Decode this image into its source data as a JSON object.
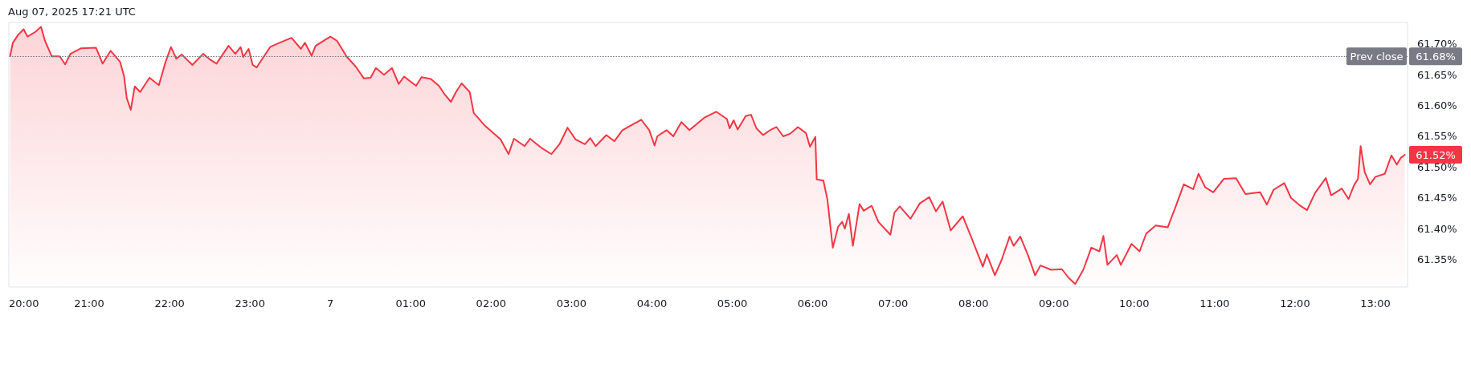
{
  "chart_data": {
    "type": "area",
    "annotations": [
      "Aug 07, 2025 17:21 UTC",
      "61.68%"
    ],
    "x": [
      "2025-08-06T20:01",
      "2025-08-06T20:03",
      "2025-08-06T20:07",
      "2025-08-06T20:11",
      "2025-08-06T20:14",
      "2025-08-06T20:20",
      "2025-08-06T20:24",
      "2025-08-06T20:27",
      "2025-08-06T20:32",
      "2025-08-06T20:38",
      "2025-08-06T20:42",
      "2025-08-06T20:46",
      "2025-08-06T20:54",
      "2025-08-06T21:05",
      "2025-08-06T21:10",
      "2025-08-06T21:16",
      "2025-08-06T21:23",
      "2025-08-06T21:26",
      "2025-08-06T21:28",
      "2025-08-06T21:31",
      "2025-08-06T21:34",
      "2025-08-06T21:38",
      "2025-08-06T21:45",
      "2025-08-06T21:52",
      "2025-08-06T21:57",
      "2025-08-06T22:01",
      "2025-08-06T22:05",
      "2025-08-06T22:09",
      "2025-08-06T22:17",
      "2025-08-06T22:25",
      "2025-08-06T22:30",
      "2025-08-06T22:35",
      "2025-08-06T22:44",
      "2025-08-06T22:49",
      "2025-08-06T22:53",
      "2025-08-06T22:55",
      "2025-08-06T22:59",
      "2025-08-06T23:02",
      "2025-08-06T23:05",
      "2025-08-06T23:15",
      "2025-08-06T23:22",
      "2025-08-06T23:31",
      "2025-08-06T23:38",
      "2025-08-06T23:41",
      "2025-08-06T23:46",
      "2025-08-06T23:49",
      "2025-08-07T00:00",
      "2025-08-07T00:05",
      "2025-08-07T00:12",
      "2025-08-07T00:19",
      "2025-08-07T00:25",
      "2025-08-07T00:30",
      "2025-08-07T00:34",
      "2025-08-07T00:40",
      "2025-08-07T00:46",
      "2025-08-07T00:51",
      "2025-08-07T00:55",
      "2025-08-07T01:04",
      "2025-08-07T01:08",
      "2025-08-07T01:15",
      "2025-08-07T01:21",
      "2025-08-07T01:25",
      "2025-08-07T01:30",
      "2025-08-07T01:34",
      "2025-08-07T01:38",
      "2025-08-07T01:44",
      "2025-08-07T01:47",
      "2025-08-07T01:55",
      "2025-08-07T02:07",
      "2025-08-07T02:13",
      "2025-08-07T02:17",
      "2025-08-07T02:25",
      "2025-08-07T02:29",
      "2025-08-07T02:37",
      "2025-08-07T02:45",
      "2025-08-07T02:51",
      "2025-08-07T02:57",
      "2025-08-07T03:03",
      "2025-08-07T03:10",
      "2025-08-07T03:14",
      "2025-08-07T03:18",
      "2025-08-07T03:26",
      "2025-08-07T03:32",
      "2025-08-07T03:38",
      "2025-08-07T03:52",
      "2025-08-07T03:58",
      "2025-08-07T04:02",
      "2025-08-07T04:04",
      "2025-08-07T04:11",
      "2025-08-07T04:16",
      "2025-08-07T04:22",
      "2025-08-07T04:28",
      "2025-08-07T04:39",
      "2025-08-07T04:48",
      "2025-08-07T04:56",
      "2025-08-07T04:58",
      "2025-08-07T05:01",
      "2025-08-07T05:04",
      "2025-08-07T05:10",
      "2025-08-07T05:14",
      "2025-08-07T05:18",
      "2025-08-07T05:23",
      "2025-08-07T05:29",
      "2025-08-07T05:33",
      "2025-08-07T05:38",
      "2025-08-07T05:43",
      "2025-08-07T05:49",
      "2025-08-07T05:55",
      "2025-08-07T05:58",
      "2025-08-07T06:02",
      "2025-08-07T06:03",
      "2025-08-07T06:08",
      "2025-08-07T06:11",
      "2025-08-07T06:15",
      "2025-08-07T06:19",
      "2025-08-07T06:22",
      "2025-08-07T06:24",
      "2025-08-07T06:27",
      "2025-08-07T06:30",
      "2025-08-07T06:35",
      "2025-08-07T06:38",
      "2025-08-07T06:44",
      "2025-08-07T06:49",
      "2025-08-07T06:58",
      "2025-08-07T07:01",
      "2025-08-07T07:05",
      "2025-08-07T07:13",
      "2025-08-07T07:20",
      "2025-08-07T07:27",
      "2025-08-07T07:32",
      "2025-08-07T07:37",
      "2025-08-07T07:43",
      "2025-08-07T07:52",
      "2025-08-07T07:58",
      "2025-08-07T08:07",
      "2025-08-07T08:10",
      "2025-08-07T08:16",
      "2025-08-07T08:21",
      "2025-08-07T08:27",
      "2025-08-07T08:30",
      "2025-08-07T08:35",
      "2025-08-07T08:41",
      "2025-08-07T08:46",
      "2025-08-07T08:50",
      "2025-08-07T08:58",
      "2025-08-07T09:06",
      "2025-08-07T09:11",
      "2025-08-07T09:16",
      "2025-08-07T09:22",
      "2025-08-07T09:28",
      "2025-08-07T09:34",
      "2025-08-07T09:37",
      "2025-08-07T09:40",
      "2025-08-07T09:47",
      "2025-08-07T09:50",
      "2025-08-07T09:58",
      "2025-08-07T10:04",
      "2025-08-07T10:09",
      "2025-08-07T10:16",
      "2025-08-07T10:25",
      "2025-08-07T10:28",
      "2025-08-07T10:31",
      "2025-08-07T10:37",
      "2025-08-07T10:44",
      "2025-08-07T10:48",
      "2025-08-07T10:53",
      "2025-08-07T10:59",
      "2025-08-07T11:07",
      "2025-08-07T11:16",
      "2025-08-07T11:23",
      "2025-08-07T11:34",
      "2025-08-07T11:39",
      "2025-08-07T11:44",
      "2025-08-07T11:52",
      "2025-08-07T11:57",
      "2025-08-07T12:04",
      "2025-08-07T12:09",
      "2025-08-07T12:15",
      "2025-08-07T12:23",
      "2025-08-07T12:27",
      "2025-08-07T12:35",
      "2025-08-07T12:40",
      "2025-08-07T12:44",
      "2025-08-07T12:47",
      "2025-08-07T12:49",
      "2025-08-07T12:52",
      "2025-08-07T12:56",
      "2025-08-07T13:00",
      "2025-08-07T13:07",
      "2025-08-07T13:12",
      "2025-08-07T13:16",
      "2025-08-07T13:19",
      "2025-08-07T13:22"
    ],
    "series": [
      {
        "color": "#f23645",
        "values": [
          61.681,
          61.702,
          61.715,
          61.724,
          61.712,
          61.72,
          61.728,
          61.705,
          61.68,
          61.68,
          61.667,
          61.684,
          61.693,
          61.694,
          61.668,
          61.689,
          61.671,
          61.648,
          61.612,
          61.593,
          61.631,
          61.622,
          61.645,
          61.633,
          61.671,
          61.695,
          61.676,
          61.683,
          61.666,
          61.684,
          61.675,
          61.668,
          61.697,
          61.684,
          61.695,
          61.679,
          61.692,
          61.666,
          61.662,
          61.695,
          61.702,
          61.71,
          61.692,
          61.702,
          61.681,
          61.697,
          61.712,
          61.705,
          61.68,
          61.663,
          61.644,
          61.645,
          61.661,
          61.65,
          61.661,
          61.635,
          61.647,
          61.632,
          61.646,
          61.643,
          61.632,
          61.619,
          61.606,
          61.623,
          61.636,
          61.622,
          61.588,
          61.568,
          61.545,
          61.521,
          61.546,
          61.534,
          61.546,
          61.532,
          61.521,
          61.537,
          61.564,
          61.545,
          61.537,
          61.547,
          61.534,
          61.552,
          61.542,
          61.56,
          61.577,
          61.56,
          61.535,
          61.55,
          61.56,
          61.55,
          61.573,
          61.56,
          61.58,
          61.59,
          61.578,
          61.563,
          61.576,
          61.561,
          61.583,
          61.585,
          61.563,
          61.552,
          61.561,
          61.565,
          61.55,
          61.554,
          61.565,
          61.555,
          61.533,
          61.549,
          61.48,
          61.478,
          61.447,
          61.369,
          61.403,
          61.411,
          61.4,
          61.424,
          61.372,
          61.44,
          61.429,
          61.437,
          61.411,
          61.39,
          61.426,
          61.436,
          61.416,
          61.441,
          61.451,
          61.428,
          61.444,
          61.397,
          61.42,
          61.388,
          61.338,
          61.358,
          61.324,
          61.349,
          61.387,
          61.372,
          61.387,
          61.355,
          61.324,
          61.34,
          61.333,
          61.334,
          61.32,
          61.31,
          61.333,
          61.369,
          61.363,
          61.388,
          61.341,
          61.357,
          61.341,
          61.375,
          61.363,
          61.392,
          61.405,
          61.402,
          61.419,
          61.436,
          61.472,
          61.464,
          61.489,
          61.467,
          61.459,
          61.481,
          61.482,
          61.456,
          61.459,
          61.439,
          61.463,
          61.474,
          61.45,
          61.437,
          61.43,
          61.458,
          61.482,
          61.454,
          61.465,
          61.448,
          61.47,
          61.481,
          61.534,
          61.492,
          61.472,
          61.484,
          61.489,
          61.519,
          61.504,
          61.515,
          61.52
        ],
        "value_labels": [
          null,
          null,
          null,
          null,
          null,
          null,
          null,
          null,
          null,
          null,
          null,
          null,
          null,
          null,
          null,
          null,
          null,
          null,
          null,
          null,
          null,
          null,
          null,
          null,
          null,
          null,
          null,
          null,
          null,
          null,
          null,
          null,
          null,
          null,
          null,
          null,
          null,
          null,
          null,
          null,
          null,
          null,
          null,
          null,
          null,
          null,
          null,
          null,
          null,
          null,
          null,
          null,
          null,
          null,
          null,
          null,
          null,
          null,
          null,
          null,
          null,
          null,
          null,
          null,
          null,
          null,
          null,
          null,
          null,
          null,
          null,
          null,
          null,
          null,
          null,
          null,
          null,
          null,
          null,
          null,
          null,
          null,
          null,
          null,
          null,
          null,
          null,
          null,
          null,
          null,
          null,
          null,
          null,
          null,
          null,
          null,
          null,
          null,
          null,
          null,
          null,
          null,
          null,
          null,
          null,
          null,
          null,
          null,
          null,
          null,
          null,
          null,
          null,
          null,
          null,
          null,
          null,
          null,
          null,
          null,
          null,
          null,
          null,
          null,
          null,
          null,
          null,
          null,
          null,
          null,
          null,
          null,
          null,
          null,
          null,
          null,
          null,
          null,
          null,
          null,
          null,
          null,
          null,
          null,
          null,
          null,
          null,
          null,
          null,
          null,
          null,
          null,
          null,
          null,
          null,
          null,
          null,
          null,
          null,
          null,
          null,
          null,
          null,
          null,
          null,
          null,
          null,
          null,
          null,
          null,
          null,
          null,
          null,
          null,
          null,
          null,
          null,
          null,
          null,
          null,
          null,
          null,
          null,
          null,
          null,
          null,
          null,
          null,
          null,
          null,
          null,
          null,
          "61.52%"
        ]
      }
    ],
    "xlim": [
      "2025-08-06T20:00",
      "2025-08-07T13:24"
    ],
    "xticks": [
      {
        "value": "2025-08-06T20:00",
        "label": "20:00"
      },
      {
        "value": "2025-08-06T21:00",
        "label": "21:00"
      },
      {
        "value": "2025-08-06T22:00",
        "label": "22:00"
      },
      {
        "value": "2025-08-06T23:00",
        "label": "23:00"
      },
      {
        "value": "2025-08-07T00:00",
        "label": "7"
      },
      {
        "value": "2025-08-07T01:00",
        "label": "01:00"
      },
      {
        "value": "2025-08-07T02:00",
        "label": "02:00"
      },
      {
        "value": "2025-08-07T03:00",
        "label": "03:00"
      },
      {
        "value": "2025-08-07T04:00",
        "label": "04:00"
      },
      {
        "value": "2025-08-07T05:00",
        "label": "05:00"
      },
      {
        "value": "2025-08-07T06:00",
        "label": "06:00"
      },
      {
        "value": "2025-08-07T07:00",
        "label": "07:00"
      },
      {
        "value": "2025-08-07T08:00",
        "label": "08:00"
      },
      {
        "value": "2025-08-07T09:00",
        "label": "09:00"
      },
      {
        "value": "2025-08-07T10:00",
        "label": "10:00"
      },
      {
        "value": "2025-08-07T11:00",
        "label": "11:00"
      },
      {
        "value": "2025-08-07T12:00",
        "label": "12:00"
      },
      {
        "value": "2025-08-07T13:00",
        "label": "13:00"
      }
    ],
    "ylim": [
      61.305,
      61.735
    ],
    "yticks": [
      {
        "value": 61.35,
        "label": "61.35%"
      },
      {
        "value": 61.4,
        "label": "61.40%"
      },
      {
        "value": 61.45,
        "label": "61.45%"
      },
      {
        "value": 61.5,
        "label": "61.50%"
      },
      {
        "value": 61.55,
        "label": "61.55%"
      },
      {
        "value": 61.6,
        "label": "61.60%"
      },
      {
        "value": 61.65,
        "label": "61.65%"
      },
      {
        "value": 61.7,
        "label": "61.70%"
      }
    ],
    "ref_lines": [
      {
        "axis": "y",
        "value": 61.68,
        "label": "Prev close",
        "color": "#787b86",
        "line_style": "dotted"
      }
    ],
    "grid": false,
    "marker": "none",
    "line_style": "solid"
  }
}
